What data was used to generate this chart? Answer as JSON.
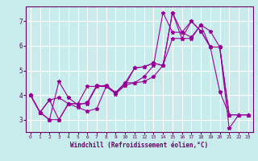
{
  "xlabel": "Windchill (Refroidissement éolien,°C)",
  "background_color": "#c8ecec",
  "grid_color": "#b8d8d8",
  "line_color": "#990099",
  "xlim": [
    -0.5,
    23.5
  ],
  "ylim": [
    2.5,
    7.6
  ],
  "yticks": [
    3,
    4,
    5,
    6,
    7
  ],
  "xticks": [
    0,
    1,
    2,
    3,
    4,
    5,
    6,
    7,
    8,
    9,
    10,
    11,
    12,
    13,
    14,
    15,
    16,
    17,
    18,
    19,
    20,
    21,
    22,
    23
  ],
  "series": [
    {
      "x": [
        0,
        1,
        2,
        3,
        4,
        5,
        6,
        7,
        8,
        9,
        10,
        11,
        12,
        13,
        14,
        15,
        16,
        17,
        18,
        19,
        20,
        21,
        22,
        23
      ],
      "y": [
        4.0,
        3.3,
        3.0,
        4.55,
        3.9,
        3.6,
        3.7,
        4.4,
        4.35,
        4.1,
        4.5,
        5.1,
        5.15,
        5.3,
        5.2,
        7.35,
        6.55,
        6.35,
        6.85,
        6.6,
        5.95,
        2.65,
        3.2,
        3.2
      ]
    },
    {
      "x": [
        0,
        1,
        2,
        3,
        4,
        5,
        6,
        7,
        8,
        9,
        10,
        11,
        12,
        13,
        14,
        15,
        16,
        17,
        18,
        19,
        20,
        21,
        22,
        23
      ],
      "y": [
        4.0,
        3.3,
        3.0,
        3.0,
        3.65,
        3.5,
        3.35,
        3.45,
        4.35,
        4.05,
        4.4,
        4.5,
        4.55,
        4.75,
        5.2,
        7.35,
        6.3,
        7.0,
        6.6,
        5.95,
        4.15,
        3.2,
        3.2,
        3.2
      ]
    },
    {
      "x": [
        0,
        1,
        2,
        3,
        4,
        5,
        6,
        7,
        8,
        9,
        10,
        11,
        12,
        13,
        14,
        15,
        16,
        17,
        18,
        19,
        20,
        21,
        22,
        23
      ],
      "y": [
        4.0,
        3.3,
        3.8,
        3.9,
        3.65,
        3.65,
        4.35,
        4.35,
        4.4,
        4.1,
        4.5,
        4.5,
        4.75,
        5.2,
        7.35,
        6.55,
        6.55,
        7.0,
        6.6,
        5.95,
        5.95,
        3.2,
        3.2,
        3.2
      ]
    },
    {
      "x": [
        0,
        1,
        2,
        3,
        4,
        5,
        6,
        7,
        8,
        9,
        10,
        11,
        12,
        13,
        14,
        15,
        16,
        17,
        18,
        19,
        20,
        21,
        22,
        23
      ],
      "y": [
        4.0,
        3.3,
        3.8,
        3.0,
        3.65,
        3.65,
        3.65,
        4.35,
        4.35,
        4.1,
        4.4,
        5.1,
        5.15,
        5.3,
        5.2,
        6.3,
        6.3,
        6.3,
        6.85,
        5.95,
        5.95,
        3.2,
        3.2,
        3.2
      ]
    }
  ]
}
